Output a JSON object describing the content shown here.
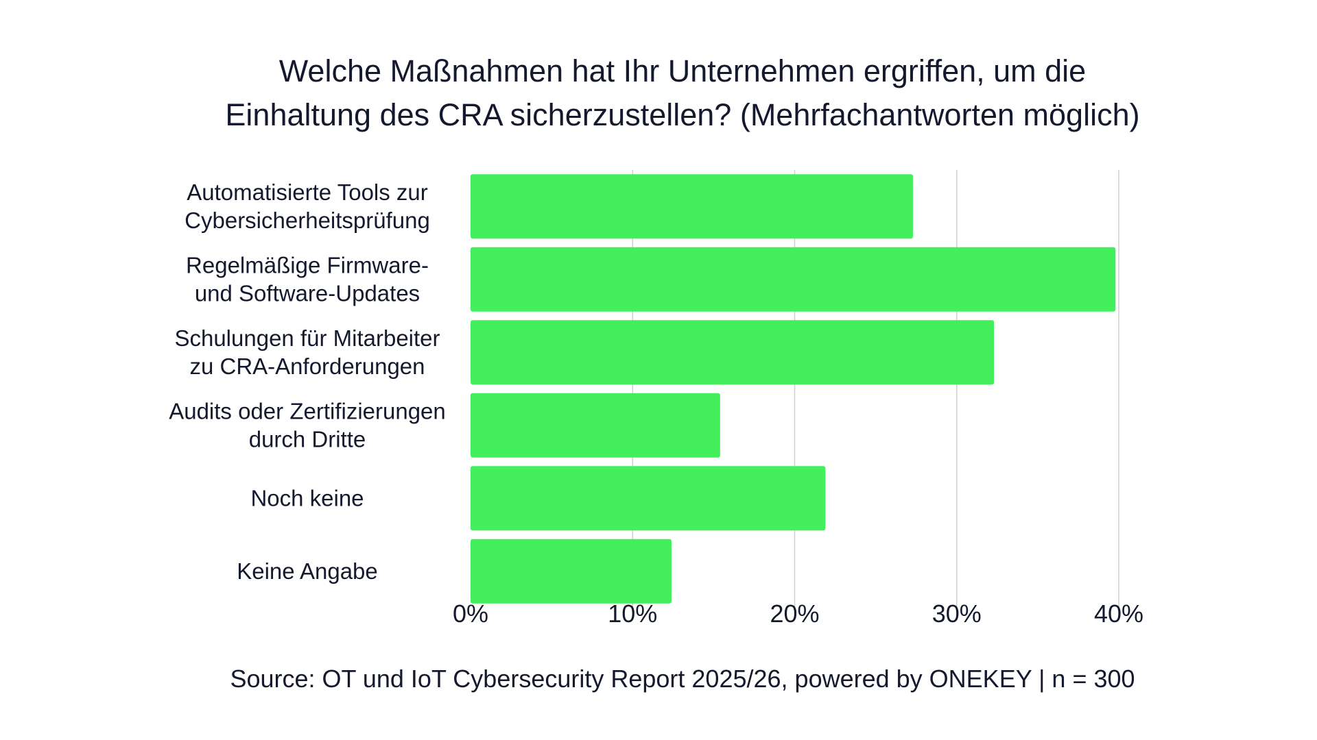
{
  "title_lines": [
    "Welche Maßnahmen hat Ihr Unternehmen ergriffen, um die",
    "Einhaltung des CRA sicherzustellen? (Mehrfachantworten möglich)"
  ],
  "source": "Source: OT und IoT Cybersecurity Report 2025/26, powered by ONEKEY | n = 300",
  "colors": {
    "bar": "#43ef5c",
    "grid": "#cfcfcf",
    "text": "#15192e"
  },
  "chart_data": {
    "type": "bar",
    "orientation": "horizontal",
    "categories": [
      [
        "Automatisierte Tools zur",
        "Cybersicherheitsprüfung"
      ],
      [
        "Regelmäßige Firmware-",
        "und Software-Updates"
      ],
      [
        "Schulungen für Mitarbeiter",
        "zu CRA-Anforderungen"
      ],
      [
        "Audits oder Zertifizierungen",
        "durch Dritte"
      ],
      [
        "Noch keine"
      ],
      [
        "Keine Angabe"
      ]
    ],
    "values": [
      27.3,
      39.8,
      32.3,
      15.4,
      21.9,
      12.4
    ],
    "unit": "%",
    "xlim": [
      0,
      40
    ],
    "xticks": [
      "0%",
      "10%",
      "20%",
      "30%",
      "40%"
    ],
    "grid": "vertical",
    "legend": "none"
  }
}
